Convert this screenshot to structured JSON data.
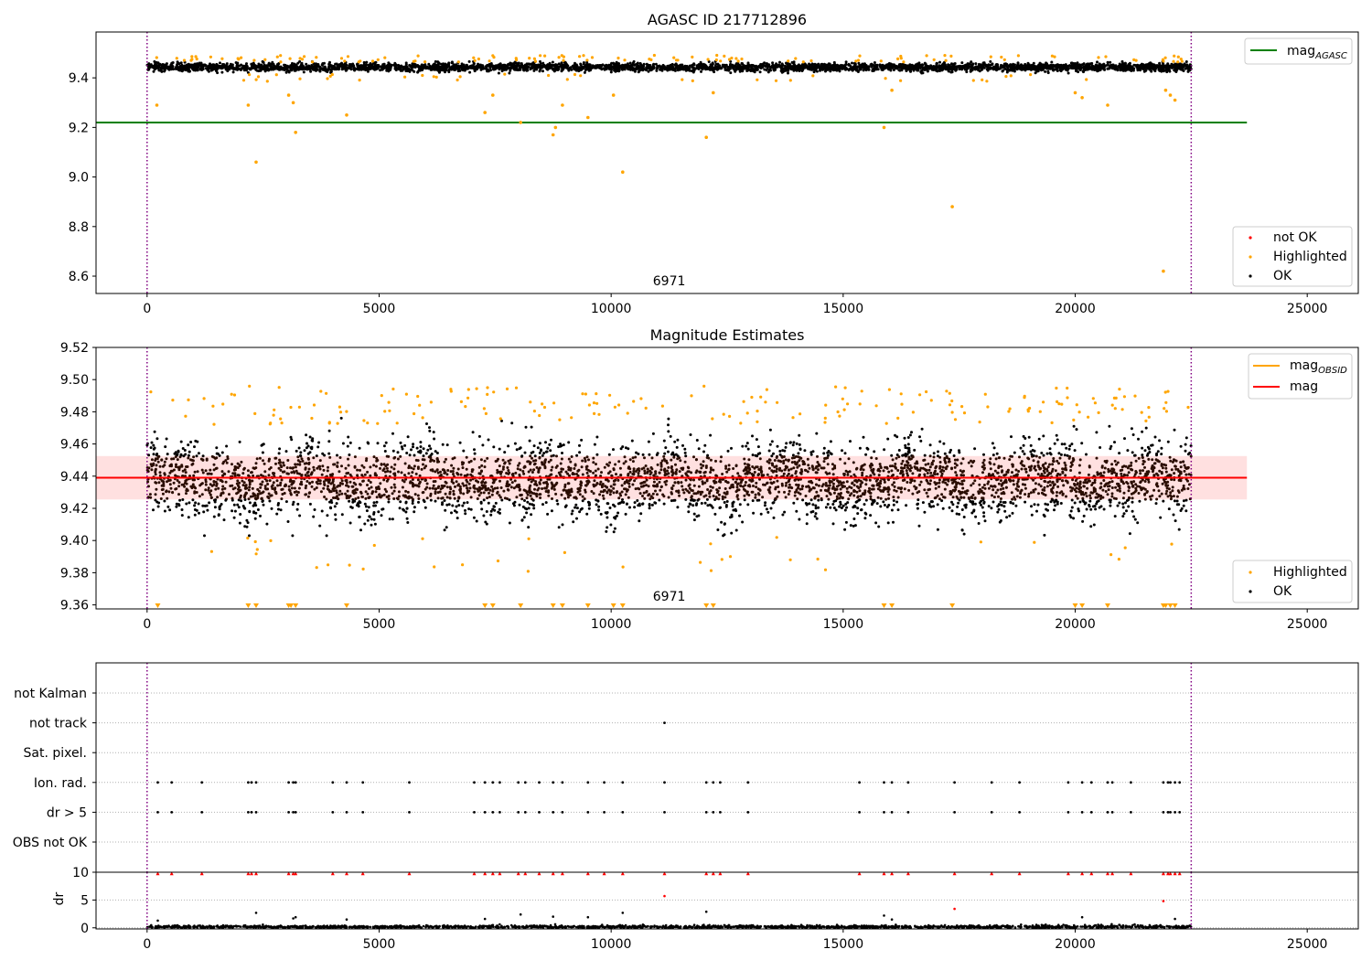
{
  "chart_data": [
    {
      "panel": "agasc",
      "type": "scatter",
      "title": "AGASC ID 217712896",
      "xlim": [
        -1100,
        26100
      ],
      "ylim": [
        8.53,
        9.585
      ],
      "xticks": [
        0,
        5000,
        10000,
        15000,
        20000,
        25000
      ],
      "xtick_labels": [
        "0",
        "5000",
        "10000",
        "15000",
        "20000",
        "25000"
      ],
      "yticks": [
        8.6,
        8.8,
        9.0,
        9.2,
        9.4
      ],
      "ytick_labels": [
        "8.6",
        "8.8",
        "9.0",
        "9.2",
        "9.4"
      ],
      "mag_agasc": 9.22,
      "line_x_range": [
        -1100,
        23700
      ],
      "obs_bounds": [
        0,
        22500
      ],
      "obsid_annotation": {
        "x": 11250,
        "text": "6971"
      },
      "ok_band": {
        "center": 9.443,
        "spread": 0.015
      },
      "highlighted_outliers": [
        {
          "x": 210,
          "y": 9.29
        },
        {
          "x": 2180,
          "y": 9.29
        },
        {
          "x": 2350,
          "y": 9.06
        },
        {
          "x": 3050,
          "y": 9.33
        },
        {
          "x": 3150,
          "y": 9.3
        },
        {
          "x": 3200,
          "y": 9.18
        },
        {
          "x": 4300,
          "y": 9.25
        },
        {
          "x": 7280,
          "y": 9.26
        },
        {
          "x": 7450,
          "y": 9.33
        },
        {
          "x": 8050,
          "y": 9.22
        },
        {
          "x": 8750,
          "y": 9.17
        },
        {
          "x": 8800,
          "y": 9.2
        },
        {
          "x": 8950,
          "y": 9.29
        },
        {
          "x": 9500,
          "y": 9.24
        },
        {
          "x": 10050,
          "y": 9.33
        },
        {
          "x": 10250,
          "y": 9.02
        },
        {
          "x": 12050,
          "y": 9.16
        },
        {
          "x": 12200,
          "y": 9.34
        },
        {
          "x": 15880,
          "y": 9.2
        },
        {
          "x": 16050,
          "y": 9.35
        },
        {
          "x": 17350,
          "y": 8.88
        },
        {
          "x": 20000,
          "y": 9.34
        },
        {
          "x": 20150,
          "y": 9.32
        },
        {
          "x": 20700,
          "y": 9.29
        },
        {
          "x": 21900,
          "y": 8.62
        },
        {
          "x": 21950,
          "y": 9.35
        },
        {
          "x": 22050,
          "y": 9.33
        },
        {
          "x": 22150,
          "y": 9.31
        }
      ],
      "legends": [
        {
          "position": "upper-right",
          "entries": [
            {
              "label": "mag",
              "subscript": "AGASC",
              "marker": "line",
              "color": "#008000"
            }
          ]
        },
        {
          "position": "lower-right",
          "entries": [
            {
              "label": "not OK",
              "marker": "dot",
              "color": "#ff0000"
            },
            {
              "label": "Highlighted",
              "marker": "dot",
              "color": "#ffa500"
            },
            {
              "label": "OK",
              "marker": "dot",
              "color": "#000000"
            }
          ]
        }
      ]
    },
    {
      "panel": "estimates",
      "type": "scatter",
      "title": "Magnitude Estimates",
      "xlim": [
        -1100,
        26100
      ],
      "ylim": [
        9.3575,
        9.52
      ],
      "xticks": [
        0,
        5000,
        10000,
        15000,
        20000,
        25000
      ],
      "xtick_labels": [
        "0",
        "5000",
        "10000",
        "15000",
        "20000",
        "25000"
      ],
      "yticks": [
        9.36,
        9.38,
        9.4,
        9.42,
        9.44,
        9.46,
        9.48,
        9.5,
        9.52
      ],
      "ytick_labels": [
        "9.36",
        "9.38",
        "9.40",
        "9.42",
        "9.44",
        "9.46",
        "9.48",
        "9.50",
        "9.52"
      ],
      "mag": 9.439,
      "mag_band": [
        9.4255,
        9.4525
      ],
      "mag_obsid": 9.439,
      "line_x_range": [
        -1100,
        23700
      ],
      "obs_bounds": [
        0,
        22500
      ],
      "obsid_annotation": {
        "x": 11250,
        "text": "6971"
      },
      "ok_band": {
        "center": 9.437,
        "spread": 0.011
      },
      "floor_markers_x": [
        230,
        2180,
        2350,
        3050,
        3100,
        3200,
        4300,
        7280,
        7450,
        8050,
        8750,
        8950,
        9500,
        10050,
        10250,
        12050,
        12200,
        15880,
        16050,
        17350,
        20000,
        20150,
        20700,
        21900,
        21950,
        22050,
        22150
      ],
      "legends": [
        {
          "position": "upper-right",
          "entries": [
            {
              "label": "mag",
              "subscript": "OBSID",
              "marker": "line",
              "color": "#ffa500"
            },
            {
              "label": "mag",
              "marker": "line",
              "color": "#ff0000"
            }
          ]
        },
        {
          "position": "lower-right",
          "entries": [
            {
              "label": "Highlighted",
              "marker": "dot",
              "color": "#ffa500"
            },
            {
              "label": "OK",
              "marker": "dot",
              "color": "#000000"
            }
          ]
        }
      ]
    },
    {
      "panel": "flags",
      "type": "scatter",
      "xlim": [
        -1100,
        26100
      ],
      "categories": [
        "not Kalman",
        "not track",
        "Sat. pixel.",
        "Ion. rad.",
        "dr > 5",
        "OBS not OK"
      ],
      "flag_x": {
        "not track": [
          11150
        ],
        "Ion. rad.": [
          230,
          530,
          1180,
          2180,
          2250,
          2350,
          3050,
          3150,
          3200,
          4000,
          4300,
          4650,
          5650,
          7050,
          7280,
          7450,
          7600,
          8000,
          8150,
          8450,
          8750,
          8950,
          9500,
          9850,
          10250,
          11150,
          12050,
          12200,
          12350,
          12950,
          15350,
          15880,
          16050,
          16400,
          17400,
          18200,
          18800,
          19850,
          20150,
          20350,
          20700,
          20800,
          21200,
          21900,
          22000,
          22050,
          22150,
          22250
        ],
        "dr > 5": [
          230,
          530,
          1180,
          2180,
          2250,
          2350,
          3050,
          3150,
          3200,
          4000,
          4300,
          4650,
          5650,
          7050,
          7280,
          7450,
          7600,
          8000,
          8150,
          8450,
          8750,
          8950,
          9500,
          9850,
          10250,
          11150,
          12050,
          12200,
          12350,
          12950,
          15350,
          15880,
          16050,
          16400,
          17400,
          18200,
          18800,
          19850,
          20150,
          20350,
          20700,
          20800,
          21200,
          21900,
          22000,
          22050,
          22150,
          22250
        ]
      },
      "obs_bounds": [
        0,
        22500
      ]
    },
    {
      "panel": "dr",
      "type": "scatter",
      "ylabel": "dr",
      "xlim": [
        -1100,
        26100
      ],
      "ylim": [
        -0.2,
        10
      ],
      "xticks": [
        0,
        5000,
        10000,
        15000,
        20000,
        25000
      ],
      "xtick_labels": [
        "0",
        "5000",
        "10000",
        "15000",
        "20000",
        "25000"
      ],
      "yticks": [
        0,
        5,
        10
      ],
      "ytick_labels": [
        "0",
        "5",
        "10"
      ],
      "clip_markers_x": [
        230,
        530,
        1180,
        2180,
        2250,
        2350,
        3050,
        3150,
        3200,
        4000,
        4300,
        4650,
        5650,
        7050,
        7280,
        7450,
        7600,
        8000,
        8150,
        8450,
        8750,
        8950,
        9500,
        9850,
        10250,
        11150,
        12050,
        12200,
        12350,
        12950,
        15350,
        15880,
        16050,
        16400,
        17400,
        18200,
        18800,
        19850,
        20150,
        20350,
        20700,
        20800,
        21200,
        21900,
        22000,
        22050,
        22150,
        22250
      ],
      "red_points": [
        {
          "x": 11150,
          "y": 5.7
        },
        {
          "x": 17400,
          "y": 3.4
        },
        {
          "x": 21900,
          "y": 4.8
        }
      ],
      "black_points": [
        {
          "x": 230,
          "y": 1.3
        },
        {
          "x": 2350,
          "y": 2.7
        },
        {
          "x": 3150,
          "y": 1.7
        },
        {
          "x": 3200,
          "y": 1.9
        },
        {
          "x": 4300,
          "y": 1.5
        },
        {
          "x": 7280,
          "y": 1.6
        },
        {
          "x": 8050,
          "y": 2.4
        },
        {
          "x": 8750,
          "y": 2.0
        },
        {
          "x": 9500,
          "y": 1.9
        },
        {
          "x": 10250,
          "y": 2.7
        },
        {
          "x": 12050,
          "y": 2.9
        },
        {
          "x": 15880,
          "y": 2.2
        },
        {
          "x": 16050,
          "y": 1.5
        },
        {
          "x": 20150,
          "y": 1.9
        },
        {
          "x": 22150,
          "y": 1.6
        }
      ],
      "obs_bounds": [
        0,
        22500
      ]
    }
  ]
}
